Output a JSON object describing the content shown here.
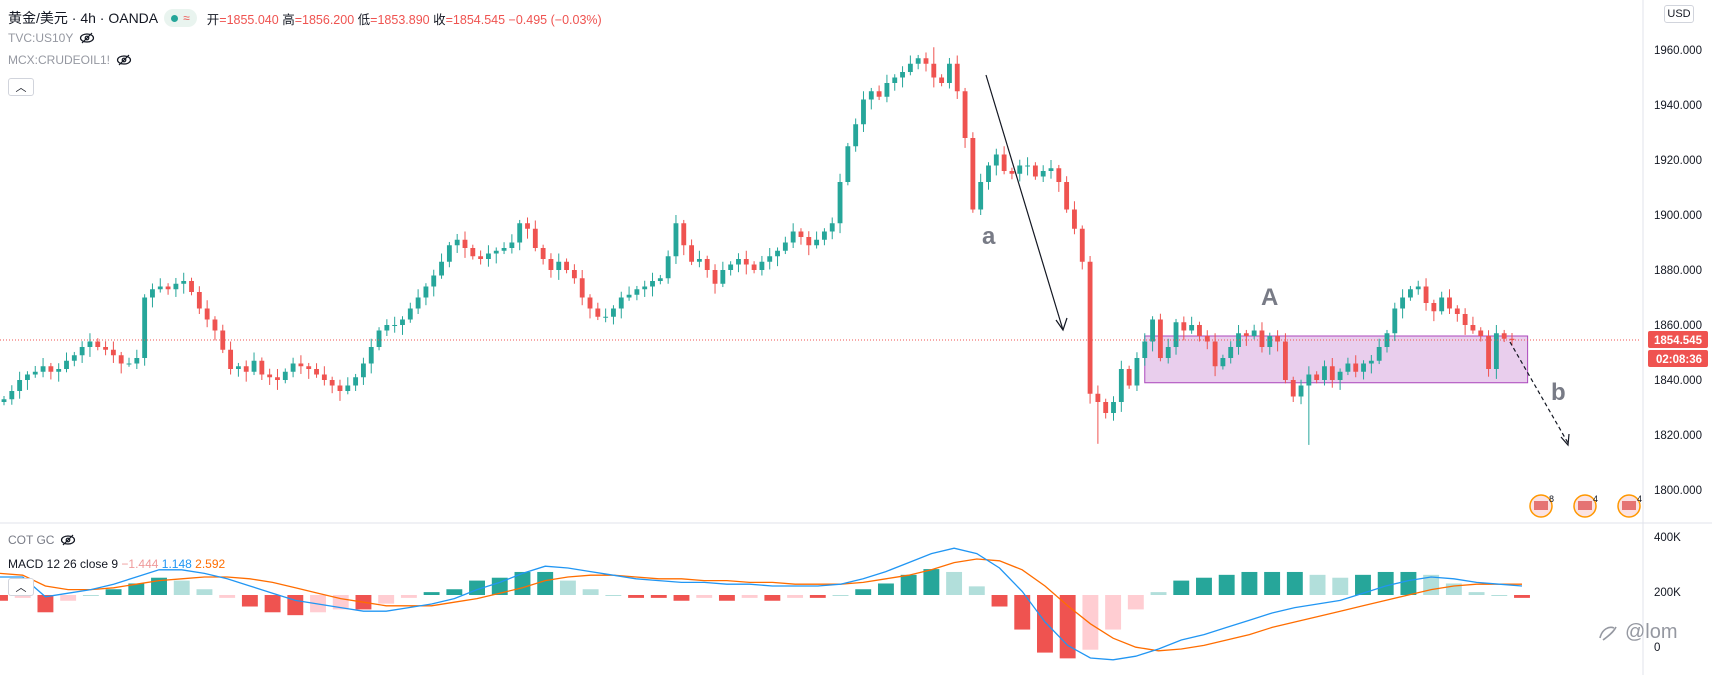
{
  "header": {
    "symbol": "黄金/美元 · 4h · OANDA",
    "open_label": "开",
    "open": "1855.040",
    "high_label": "高",
    "high": "1856.200",
    "low_label": "低",
    "low": "1853.890",
    "close_label": "收",
    "close": "1854.545",
    "change": "−0.495 (−0.03%)"
  },
  "overlays": [
    "TVC:US10Y",
    "MCX:CRUDEOIL1!"
  ],
  "currency_button": "USD",
  "price_axis": {
    "ticks": [
      "1960.000",
      "1940.000",
      "1920.000",
      "1900.000",
      "1880.000",
      "1860.000",
      "1840.000",
      "1820.000",
      "1800.000"
    ],
    "current_price": "1854.545",
    "countdown": "02:08:36"
  },
  "annotations": {
    "wave_a": "a",
    "range_A": "A",
    "wave_b": "b"
  },
  "event_badges": [
    "8",
    "4",
    "4"
  ],
  "cot_indicator": "COT GC",
  "macd": {
    "label": "MACD 12 26 close 9",
    "hist_value": "−1.444",
    "macd_value": "1.148",
    "signal_value": "2.592"
  },
  "volume_axis": [
    "400K",
    "200K",
    "0"
  ],
  "watermark": "@lom",
  "colors": {
    "up": "#26a69a",
    "down": "#ef5350",
    "range_box": "#e1bee7",
    "macd_line": "#2196f3",
    "signal_line": "#ff6d00",
    "price_tag": "#ef5350"
  },
  "chart_data": {
    "type": "candlestick",
    "timeframe": "4h",
    "ylim": [
      1790,
      1968
    ],
    "close_path": [
      1833,
      1836,
      1840,
      1842,
      1843,
      1845,
      1843,
      1844,
      1847,
      1849,
      1852,
      1854,
      1852,
      1851,
      1849,
      1846,
      1846,
      1848,
      1870,
      1873,
      1874,
      1873,
      1875,
      1876,
      1872,
      1866,
      1862,
      1858,
      1851,
      1844,
      1845,
      1843,
      1847,
      1842,
      1841,
      1840,
      1843,
      1846,
      1845,
      1844,
      1842,
      1840,
      1838,
      1836,
      1838,
      1841,
      1846,
      1852,
      1858,
      1860,
      1860,
      1862,
      1866,
      1870,
      1874,
      1878,
      1883,
      1889,
      1891,
      1888,
      1885,
      1884,
      1886,
      1887,
      1888,
      1890,
      1897,
      1895,
      1888,
      1884,
      1880,
      1883,
      1880,
      1877,
      1870,
      1866,
      1863,
      1863,
      1866,
      1870,
      1871,
      1873,
      1874,
      1876,
      1877,
      1885,
      1897,
      1889,
      1883,
      1884,
      1880,
      1875,
      1880,
      1882,
      1884,
      1882,
      1880,
      1883,
      1885,
      1887,
      1890,
      1894,
      1892,
      1889,
      1891,
      1894,
      1897,
      1912,
      1925,
      1933,
      1942,
      1945,
      1943,
      1948,
      1950,
      1952,
      1955,
      1957,
      1955,
      1950,
      1948,
      1955,
      1945,
      1928,
      1902,
      1912,
      1918,
      1922,
      1916,
      1915,
      1918,
      1918,
      1914,
      1916,
      1917,
      1912,
      1902,
      1895,
      1883,
      1835,
      1832,
      1828,
      1832,
      1844,
      1838,
      1848,
      1854,
      1862,
      1848,
      1852,
      1861,
      1858,
      1860,
      1856,
      1854,
      1845,
      1848,
      1852,
      1857,
      1856,
      1858,
      1852,
      1856,
      1854,
      1840,
      1834,
      1838,
      1842,
      1840,
      1845,
      1840,
      1843,
      1846,
      1843,
      1846,
      1847,
      1852,
      1857,
      1866,
      1870,
      1873,
      1874,
      1868,
      1865,
      1870,
      1866,
      1864,
      1860,
      1858,
      1856,
      1844,
      1857,
      1855,
      1854.5
    ],
    "range_box_A": {
      "price_low": 1839,
      "price_high": 1856
    },
    "macd_line": [
      10,
      10,
      -1,
      1,
      3,
      6,
      10,
      14,
      14,
      12,
      9,
      5,
      1,
      -3,
      -5,
      -7,
      -9,
      -9,
      -7,
      -5,
      -2,
      3,
      7,
      12,
      16,
      15,
      13,
      11,
      9,
      8,
      7,
      7,
      6,
      6,
      5,
      5,
      5,
      6,
      9,
      13,
      18,
      23,
      26,
      23,
      15,
      2,
      -15,
      -28,
      -35,
      -36,
      -34,
      -30,
      -25,
      -22,
      -18,
      -14,
      -10,
      -7,
      -5,
      -3,
      1,
      5,
      8,
      10,
      9,
      7,
      6,
      5
    ],
    "signal_line": [
      12,
      11,
      5,
      3,
      3,
      4,
      6,
      8,
      9,
      10,
      10,
      9,
      7,
      4,
      1,
      -2,
      -4,
      -6,
      -6,
      -6,
      -4,
      -2,
      1,
      4,
      8,
      10,
      11,
      11,
      10,
      9,
      9,
      8,
      8,
      7,
      7,
      6,
      6,
      6,
      7,
      9,
      11,
      14,
      18,
      20,
      19,
      14,
      5,
      -6,
      -16,
      -24,
      -29,
      -31,
      -30,
      -28,
      -25,
      -22,
      -18,
      -15,
      -12,
      -9,
      -6,
      -3,
      0,
      3,
      5,
      6,
      6,
      6
    ],
    "series": [
      {
        "name": "MACD",
        "color": "#2196f3"
      },
      {
        "name": "Signal",
        "color": "#ff6d00"
      }
    ]
  }
}
